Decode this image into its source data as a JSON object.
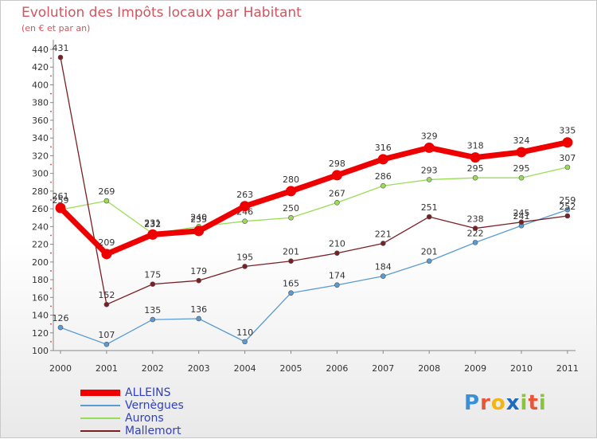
{
  "chart_data": {
    "type": "line",
    "title": "Evolution des Impôts locaux par Habitant",
    "subtitle": "(en € et par an)",
    "xlabel": "",
    "ylabel": "",
    "categories": [
      "2000",
      "2001",
      "2002",
      "2003",
      "2004",
      "2005",
      "2006",
      "2007",
      "2008",
      "2009",
      "2010",
      "2011"
    ],
    "ylim": [
      100,
      440
    ],
    "yticks": [
      100,
      120,
      140,
      160,
      180,
      200,
      220,
      240,
      260,
      280,
      300,
      320,
      340,
      360,
      380,
      400,
      420,
      440
    ],
    "grid": false,
    "legend_position": "bottom-left",
    "series": [
      {
        "name": "ALLEINS",
        "color": "#ee0000",
        "emphasis": true,
        "values": [
          261,
          209,
          231,
          235,
          263,
          280,
          298,
          316,
          329,
          318,
          324,
          335
        ]
      },
      {
        "name": "Vernègues",
        "color": "#5a9bd4",
        "emphasis": false,
        "values": [
          126,
          107,
          135,
          136,
          110,
          165,
          174,
          184,
          201,
          222,
          241,
          259
        ]
      },
      {
        "name": "Aurons",
        "color": "#99dd55",
        "emphasis": false,
        "values": [
          259,
          269,
          232,
          240,
          246,
          250,
          267,
          286,
          293,
          295,
          295,
          307
        ]
      },
      {
        "name": "Mallemort",
        "color": "#7a1f24",
        "emphasis": false,
        "values": [
          431,
          152,
          175,
          179,
          195,
          201,
          210,
          221,
          251,
          238,
          245,
          252
        ]
      }
    ]
  },
  "logo": {
    "text": "Proxiti",
    "letters": [
      "P",
      "r",
      "o",
      "x",
      "i",
      "t",
      "i"
    ],
    "colors": [
      "#3a8fd6",
      "#e8563a",
      "#f2b417",
      "#1c6bbd",
      "#8ac43f",
      "#e8563a",
      "#8ac43f"
    ]
  }
}
